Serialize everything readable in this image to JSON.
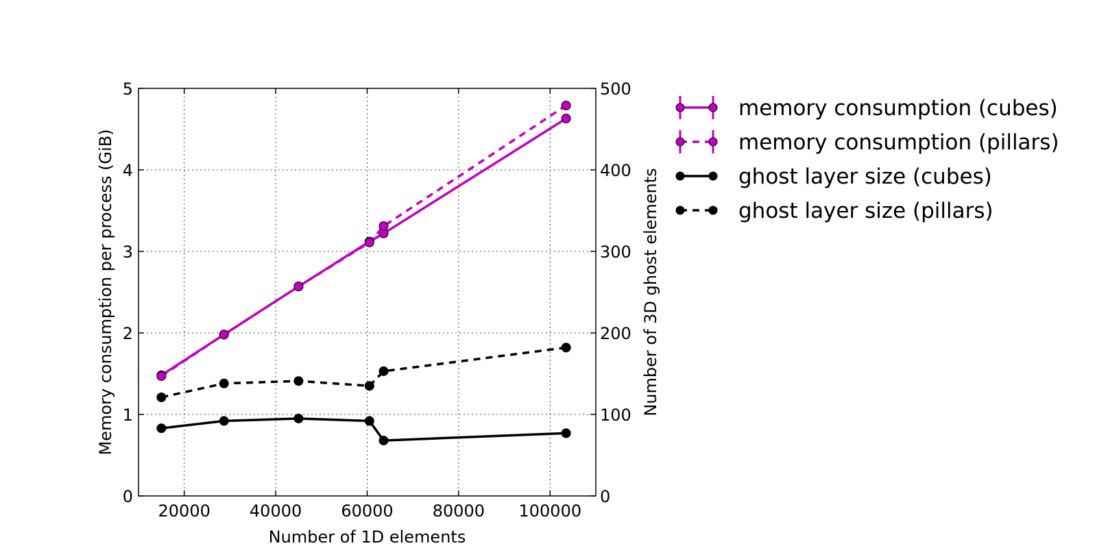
{
  "chart_data": {
    "type": "line",
    "xlabel": "Number of 1D elements",
    "ylabel_left": "Memory consumption per process (GiB)",
    "ylabel_right": "Number of 3D ghost elements",
    "xlim": [
      10000,
      110000
    ],
    "ylim_left": [
      0,
      5
    ],
    "ylim_right": [
      0,
      500
    ],
    "x_ticks": [
      20000,
      40000,
      60000,
      80000,
      100000
    ],
    "y_ticks_left": [
      0,
      1,
      2,
      3,
      4,
      5
    ],
    "y_ticks_right": [
      0,
      100,
      200,
      300,
      400,
      500
    ],
    "grid": true,
    "legend_position": "outside-right-top",
    "series": [
      {
        "name": "memory consumption (cubes)",
        "axis": "left",
        "color": "#bf00bf",
        "dash": "solid",
        "x": [
          15000,
          28700,
          45000,
          60500,
          63600,
          103500
        ],
        "values": [
          1.48,
          1.98,
          2.57,
          3.12,
          3.22,
          4.63
        ]
      },
      {
        "name": "memory consumption (pillars)",
        "axis": "left",
        "color": "#bf00bf",
        "dash": "dashed",
        "x": [
          15000,
          28700,
          45000,
          60500,
          63600,
          103500
        ],
        "values": [
          1.47,
          1.98,
          2.57,
          3.11,
          3.31,
          4.79
        ]
      },
      {
        "name": "ghost layer size (cubes)",
        "axis": "right",
        "color": "#000000",
        "dash": "solid",
        "x": [
          15000,
          28700,
          45000,
          60500,
          63600,
          103500
        ],
        "values": [
          83,
          92,
          95,
          92,
          68,
          77
        ]
      },
      {
        "name": "ghost layer size (pillars)",
        "axis": "right",
        "color": "#000000",
        "dash": "dashed",
        "x": [
          15000,
          28700,
          45000,
          60500,
          63600,
          103500
        ],
        "values": [
          121,
          138,
          141,
          135,
          153,
          182
        ]
      }
    ]
  }
}
